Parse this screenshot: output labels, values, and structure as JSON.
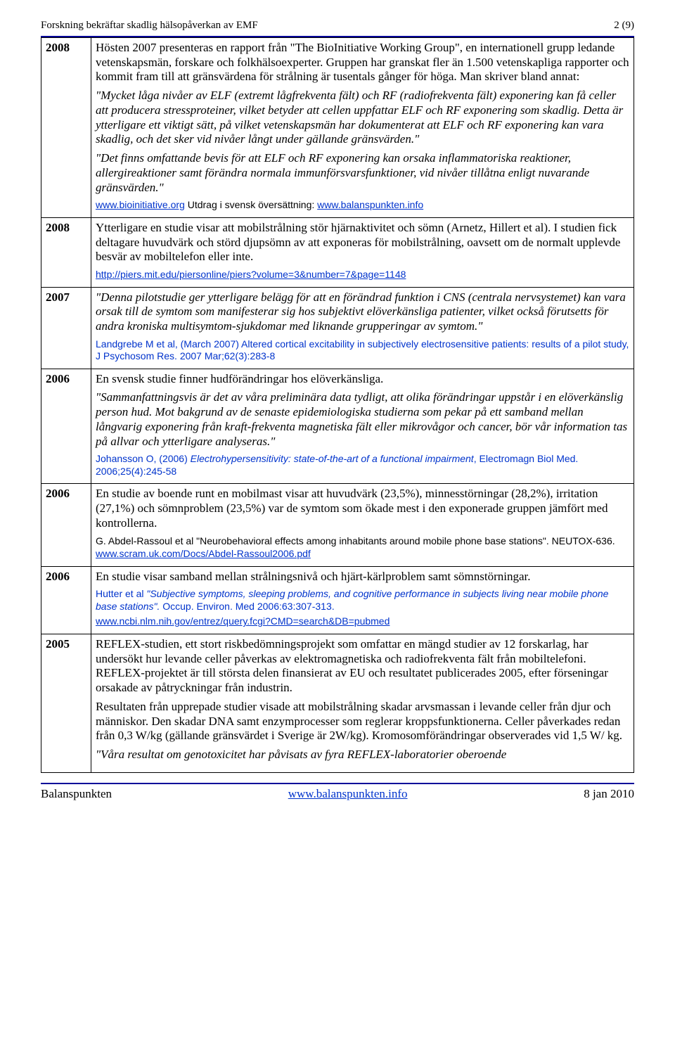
{
  "header": {
    "left": "Forskning bekräftar skadlig hälsopåverkan av EMF",
    "right": "2 (9)"
  },
  "rows": [
    {
      "year": "2008",
      "blocks": [
        {
          "t": "p",
          "text": "Hösten 2007 presenteras en rapport från \"The BioInitiative Working Group\", en internationell grupp ledande vetenskapsmän, forskare och folkhälsoexperter. Gruppen har granskat fler än 1.500 vetenskapliga rapporter och kommit fram till att gränsvärdena för strålning är tusentals gånger för höga. Man skriver bland annat:"
        },
        {
          "t": "pi",
          "text": "\"Mycket låga nivåer av ELF (extremt lågfrekventa fält) och RF (radiofrekventa fält) exponering kan få celler att producera stressproteiner, vilket betyder att cellen uppfattar ELF och RF exponering som skadlig. Detta är ytterligare ett viktigt sätt, på vilket vetenskapsmän har dokumenterat att ELF och RF exponering kan vara skadlig, och det sker vid nivåer långt under gällande gränsvärden.\""
        },
        {
          "t": "pi",
          "text": "\"Det finns omfattande bevis för att ELF och RF exponering kan orsaka inflammatoriska reaktioner, allergireaktioner samt förändra normala immunförsvarsfunktioner, vid nivåer tillåtna enligt nuvarande gränsvärden.\""
        },
        {
          "t": "cite_mixed",
          "parts": [
            {
              "link": "www.bioinitiative.org"
            },
            {
              "plain": "  Utdrag i svensk översättning: "
            },
            {
              "link": "www.balanspunkten.info"
            }
          ]
        }
      ]
    },
    {
      "year": "2008",
      "blocks": [
        {
          "t": "p",
          "text": "Ytterligare en studie visar att mobilstrålning stör hjärnaktivitet och sömn (Arnetz, Hillert et al). I studien fick deltagare huvudvärk och störd djupsömn av att exponeras för mobilstrålning, oavsett om de normalt upplevde besvär av mobiltelefon eller inte."
        },
        {
          "t": "cite_link",
          "text": "http://piers.mit.edu/piersonline/piers?volume=3&number=7&page=1148"
        }
      ]
    },
    {
      "year": "2007",
      "blocks": [
        {
          "t": "pi",
          "text": "\"Denna pilotstudie ger ytterligare belägg för att en förändrad funktion i CNS (centrala nervsystemet) kan vara orsak till de symtom som manifesterar sig hos subjektivt elöverkänsliga patienter, vilket också förutsetts för andra kroniska multisymtom-sjukdomar med liknande grupperingar av symtom.\""
        },
        {
          "t": "cite_blue",
          "text": "Landgrebe M et al, (March 2007) Altered cortical excitability in subjectively electrosensitive patients: results of a pilot study, J Psychosom Res. 2007 Mar;62(3):283-8"
        }
      ]
    },
    {
      "year": "2006",
      "blocks": [
        {
          "t": "p",
          "text": "En svensk studie finner hudförändringar hos elöverkänsliga."
        },
        {
          "t": "pi",
          "text": "\"Sammanfattningsvis är det av våra preliminära data tydligt, att olika förändringar uppstår i en elöverkänslig person hud. Mot bakgrund av de senaste epidemiologiska studierna som pekar på ett samband mellan långvarig exponering från kraft-frekventa magnetiska fält eller mikrovågor och cancer, bör vår information tas på allvar och ytterligare analyseras.\""
        },
        {
          "t": "cite_johansson",
          "plain1": "Johansson O, (2006) ",
          "ital": "Electrohypersensitivity: state-of-the-art of a functional impairment",
          "plain2": ", Electromagn Biol Med. 2006;25(4):245-58"
        }
      ]
    },
    {
      "year": "2006",
      "blocks": [
        {
          "t": "p",
          "text": "En studie av boende runt en mobilmast visar att huvudvärk (23,5%), minnesstörningar (28,2%), irritation (27,1%) och sömnproblem (23,5%) var de symtom som ökade mest i den exponerade gruppen jämfört med kontrollerna."
        },
        {
          "t": "cite_plain",
          "text": "G. Abdel-Rassoul et al \"Neurobehavioral effects among inhabitants around mobile phone base stations\". NEUTOX-636. "
        },
        {
          "t": "cite_link_inline",
          "text": "www.scram.uk.com/Docs/Abdel-Rassoul2006.pdf"
        }
      ]
    },
    {
      "year": "2006",
      "blocks": [
        {
          "t": "p",
          "text": "En studie visar samband mellan strålningsnivå och hjärt-kärlproblem samt sömnstörningar."
        },
        {
          "t": "cite_hutter",
          "plain1": "Hutter et al ",
          "ital": "\"Subjective symptoms, sleeping problems, and cognitive performance in subjects living near mobile phone base stations\".",
          "plain2": " Occup. Environ. Med 2006:63:307-313."
        },
        {
          "t": "cite_link",
          "text": "www.ncbi.nlm.nih.gov/entrez/query.fcgi?CMD=search&DB=pubmed"
        }
      ]
    },
    {
      "year": "2005",
      "blocks": [
        {
          "t": "p",
          "text": "REFLEX-studien, ett stort riskbedömningsprojekt som omfattar en mängd studier av 12 forskarlag, har undersökt hur levande celler påverkas av elektromagnetiska och radiofrekventa fält från mobiltelefoni. REFLEX-projektet är till största delen finansierat av EU och resultatet publicerades 2005, efter förseningar orsakade av påtryckningar från industrin."
        },
        {
          "t": "p",
          "text": "Resultaten från upprepade studier visade att mobilstrålning skadar arvsmassan i levande celler från djur och människor. Den skadar DNA samt enzymprocesser som reglerar kroppsfunktionerna. Celler påverkades redan från 0,3 W/kg (gällande gränsvärdet i Sverige är 2W/kg). Kromosomförändringar observerades vid 1,5 W/ kg."
        },
        {
          "t": "pi",
          "text": "\"Våra resultat om genotoxicitet har påvisats av fyra REFLEX-laboratorier oberoende"
        }
      ]
    }
  ],
  "footer": {
    "left": "Balanspunkten",
    "center": "www.balanspunkten.info",
    "right": "8 jan 2010"
  }
}
